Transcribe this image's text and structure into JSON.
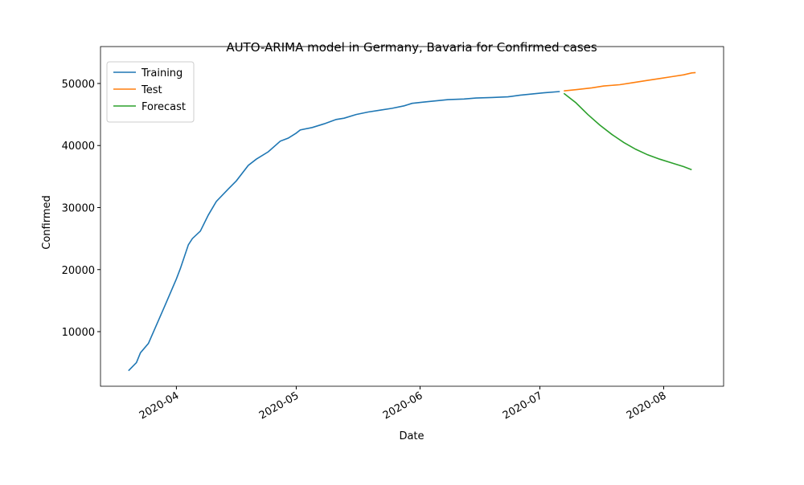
{
  "chart_data": {
    "type": "line",
    "title": "AUTO-ARIMA model in Germany, Bavaria for Confirmed cases",
    "x_label": "Date",
    "y_label": "Confirmed",
    "xlim": [
      "2020-03-13",
      "2020-08-16"
    ],
    "xticks": [
      {
        "value": "2020-04-01",
        "label": "2020-04"
      },
      {
        "value": "2020-05-01",
        "label": "2020-05"
      },
      {
        "value": "2020-06-01",
        "label": "2020-06"
      },
      {
        "value": "2020-07-01",
        "label": "2020-07"
      },
      {
        "value": "2020-08-01",
        "label": "2020-08"
      }
    ],
    "ylim": [
      1200,
      55950
    ],
    "yticks": [
      10000,
      20000,
      30000,
      40000,
      50000
    ],
    "legend": "upper left",
    "grid": false,
    "series": [
      {
        "name": "Training",
        "color": "#1f77b4",
        "x": [
          "2020-03-20",
          "2020-03-22",
          "2020-03-23",
          "2020-03-25",
          "2020-03-29",
          "2020-04-01",
          "2020-04-02",
          "2020-04-04",
          "2020-04-05",
          "2020-04-07",
          "2020-04-09",
          "2020-04-11",
          "2020-04-14",
          "2020-04-16",
          "2020-04-19",
          "2020-04-21",
          "2020-04-24",
          "2020-04-27",
          "2020-04-29",
          "2020-05-01",
          "2020-05-02",
          "2020-05-05",
          "2020-05-08",
          "2020-05-11",
          "2020-05-13",
          "2020-05-16",
          "2020-05-19",
          "2020-05-22",
          "2020-05-25",
          "2020-05-28",
          "2020-05-30",
          "2020-06-02",
          "2020-06-05",
          "2020-06-08",
          "2020-06-12",
          "2020-06-15",
          "2020-06-19",
          "2020-06-23",
          "2020-06-26",
          "2020-06-29",
          "2020-07-02",
          "2020-07-06"
        ],
        "values": [
          3700,
          5000,
          6600,
          8100,
          14000,
          18500,
          20200,
          24000,
          25000,
          26200,
          28800,
          31000,
          33000,
          34300,
          36800,
          37800,
          39000,
          40700,
          41200,
          42000,
          42500,
          42900,
          43500,
          44200,
          44400,
          45000,
          45400,
          45700,
          46000,
          46400,
          46800,
          47000,
          47200,
          47400,
          47500,
          47650,
          47750,
          47850,
          48100,
          48300,
          48500,
          48700
        ]
      },
      {
        "name": "Test",
        "color": "#ff7f0e",
        "x": [
          "2020-07-07",
          "2020-07-10",
          "2020-07-14",
          "2020-07-17",
          "2020-07-21",
          "2020-07-24",
          "2020-07-28",
          "2020-07-31",
          "2020-08-03",
          "2020-08-06",
          "2020-08-08",
          "2020-08-09"
        ],
        "values": [
          48800,
          49000,
          49300,
          49600,
          49800,
          50100,
          50500,
          50800,
          51100,
          51400,
          51700,
          51750
        ]
      },
      {
        "name": "Forecast",
        "color": "#2ca02c",
        "x": [
          "2020-07-07",
          "2020-07-10",
          "2020-07-13",
          "2020-07-16",
          "2020-07-19",
          "2020-07-22",
          "2020-07-25",
          "2020-07-28",
          "2020-07-31",
          "2020-08-03",
          "2020-08-06",
          "2020-08-08"
        ],
        "values": [
          48400,
          46900,
          45000,
          43300,
          41800,
          40500,
          39400,
          38500,
          37800,
          37200,
          36600,
          36100
        ]
      }
    ]
  }
}
